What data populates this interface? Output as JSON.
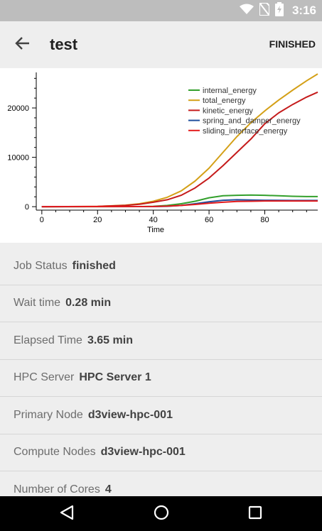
{
  "status_bar": {
    "time": "3:16",
    "icons": [
      "wifi-icon",
      "no-sim-icon",
      "battery-charging-icon"
    ]
  },
  "app_bar": {
    "title": "test",
    "action": "FINISHED",
    "back_icon": "arrow-back-icon"
  },
  "chart_data": {
    "type": "line",
    "xlabel": "Time",
    "ylabel": "",
    "xlim": [
      -2,
      99
    ],
    "ylim": [
      -700,
      27200
    ],
    "x_ticks": [
      0,
      20,
      40,
      60,
      80
    ],
    "y_ticks": [
      0,
      10000,
      20000
    ],
    "legend_position": "top-right",
    "series": [
      {
        "name": "internal_energy",
        "color": "#33a02c",
        "x": [
          0,
          20,
          35,
          40,
          45,
          50,
          55,
          60,
          65,
          70,
          75,
          80,
          85,
          90,
          95,
          99
        ],
        "y": [
          0,
          0,
          20,
          80,
          250,
          600,
          1100,
          1800,
          2200,
          2300,
          2350,
          2300,
          2200,
          2100,
          2050,
          2050
        ]
      },
      {
        "name": "total_energy",
        "color": "#d4a017",
        "x": [
          0,
          20,
          30,
          35,
          40,
          45,
          50,
          55,
          60,
          65,
          70,
          75,
          80,
          85,
          90,
          95,
          99
        ],
        "y": [
          0,
          50,
          300,
          600,
          1100,
          1900,
          3200,
          5200,
          7800,
          11000,
          14200,
          17000,
          19400,
          21600,
          23600,
          25500,
          26900
        ]
      },
      {
        "name": "kinetic_energy",
        "color": "#c51b1b",
        "x": [
          0,
          20,
          30,
          35,
          40,
          45,
          50,
          55,
          60,
          65,
          70,
          75,
          80,
          85,
          90,
          95,
          99
        ],
        "y": [
          0,
          50,
          250,
          500,
          900,
          1400,
          2300,
          3800,
          5800,
          8300,
          11000,
          13700,
          16800,
          19000,
          20700,
          22200,
          23200
        ]
      },
      {
        "name": "spring_and_damper_energy",
        "color": "#1f4e9c",
        "x": [
          0,
          40,
          45,
          50,
          55,
          60,
          65,
          70,
          75,
          80,
          90,
          99
        ],
        "y": [
          0,
          20,
          80,
          250,
          600,
          1000,
          1300,
          1400,
          1350,
          1300,
          1250,
          1250
        ]
      },
      {
        "name": "sliding_interface_energy",
        "color": "#e31a1c",
        "x": [
          0,
          40,
          45,
          50,
          55,
          60,
          65,
          70,
          75,
          80,
          90,
          99
        ],
        "y": [
          0,
          30,
          100,
          250,
          450,
          700,
          900,
          1050,
          1100,
          1150,
          1150,
          1150
        ]
      }
    ]
  },
  "details": [
    {
      "label": "Job Status",
      "value": "finished"
    },
    {
      "label": "Wait time",
      "value": "0.28 min"
    },
    {
      "label": "Elapsed Time",
      "value": "3.65 min"
    },
    {
      "label": "HPC Server",
      "value": "HPC Server 1"
    },
    {
      "label": "Primary Node",
      "value": "d3view-hpc-001"
    },
    {
      "label": "Compute Nodes",
      "value": "d3view-hpc-001"
    },
    {
      "label": "Number of Cores",
      "value": "4"
    }
  ],
  "nav_bar": {
    "buttons": [
      "back-triangle-icon",
      "home-circle-icon",
      "recents-square-icon"
    ]
  }
}
